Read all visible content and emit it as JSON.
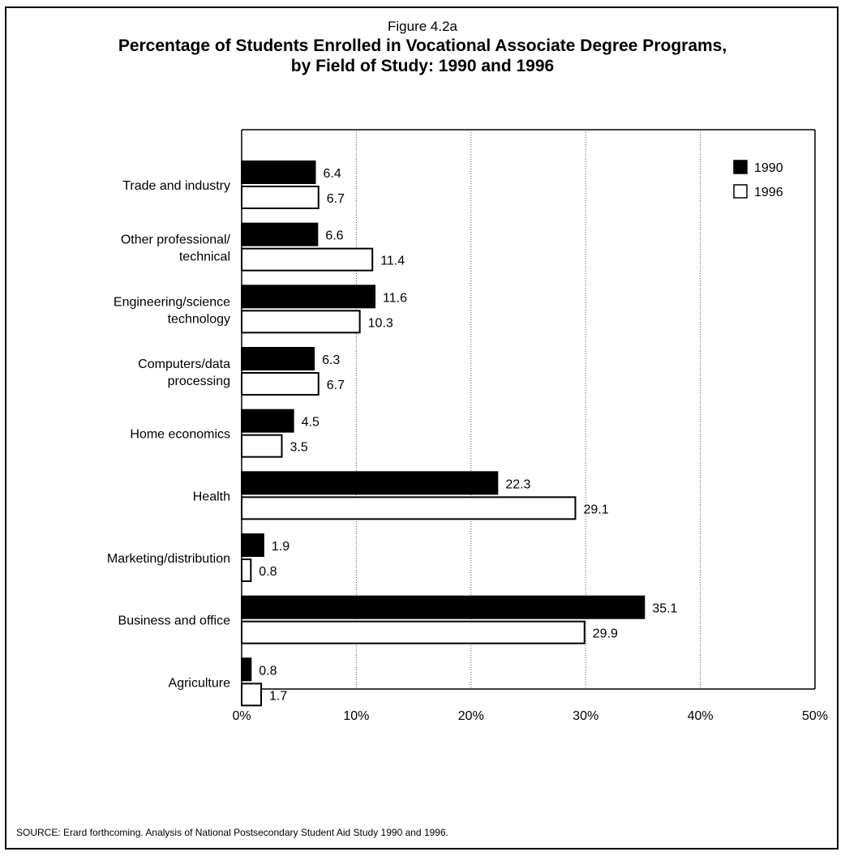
{
  "header": {
    "figure_label": "Figure 4.2a",
    "title_line1": "Percentage of Students Enrolled in Vocational Associate Degree Programs,",
    "title_line2": "by Field of Study: 1990 and 1996"
  },
  "source": "SOURCE: Erard forthcoming. Analysis of National Postsecondary Student Aid Study 1990 and 1996.",
  "colors": {
    "series_1990": "#000000",
    "series_1996": "#ffffff"
  },
  "chart_data": {
    "type": "bar",
    "orientation": "horizontal",
    "title": "Percentage of Students Enrolled in Vocational Associate Degree Programs, by Field of Study: 1990 and 1996",
    "categories": [
      [
        "Trade and industry"
      ],
      [
        "Other professional/",
        "technical"
      ],
      [
        "Engineering/science",
        "technology"
      ],
      [
        "Computers/data",
        "processing"
      ],
      [
        "Home economics"
      ],
      [
        "Health"
      ],
      [
        "Marketing/distribution"
      ],
      [
        "Business and office"
      ],
      [
        "Agriculture"
      ]
    ],
    "series": [
      {
        "name": "1990",
        "values": [
          6.4,
          6.6,
          11.6,
          6.3,
          4.5,
          22.3,
          1.9,
          35.1,
          0.8
        ],
        "labels": [
          "6.4",
          "6.6",
          "11.6",
          "6.3",
          "4.5",
          "22.3",
          "1.9",
          "35.1",
          "0.8"
        ]
      },
      {
        "name": "1996",
        "values": [
          6.7,
          11.4,
          10.3,
          6.7,
          3.5,
          29.1,
          0.8,
          29.9,
          1.7
        ],
        "labels": [
          "6.7",
          "11.4",
          "10.3",
          "6.7",
          "3.5",
          "29.1",
          "0.8",
          "29.9",
          "1.7"
        ]
      }
    ],
    "x_ticks": [
      "0%",
      "10%",
      "20%",
      "30%",
      "40%",
      "50%"
    ],
    "xlim": [
      0,
      50
    ],
    "grid": true,
    "legend_position": "top-right"
  }
}
